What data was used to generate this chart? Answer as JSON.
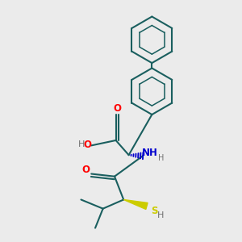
{
  "bg_color": "#ebebeb",
  "line_color": "#1a5f5f",
  "bond_width": 1.5,
  "colors": {
    "O": "#ff0000",
    "N": "#0000cd",
    "S": "#cccc00",
    "C": "#1a5f5f",
    "H": "#707070"
  },
  "ring_color": "#1a5f5f",
  "inner_ring_color": "#1a5f5f"
}
